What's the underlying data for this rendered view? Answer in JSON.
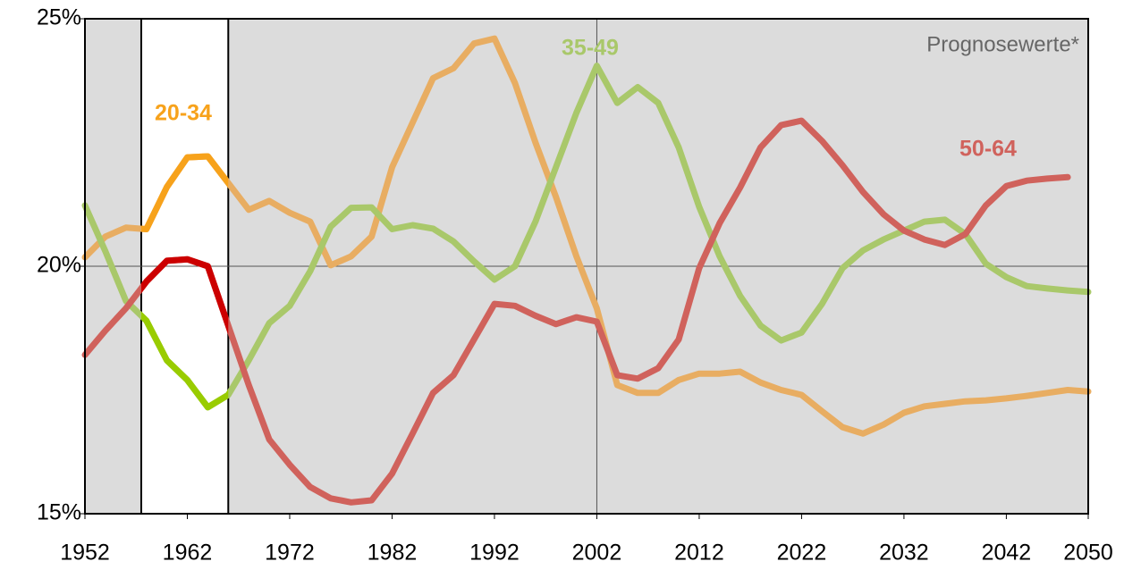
{
  "chart_data": {
    "type": "line",
    "annotation": "Prognosewerte*",
    "x": [
      1952,
      1954,
      1956,
      1958,
      1960,
      1962,
      1964,
      1966,
      1968,
      1970,
      1972,
      1974,
      1976,
      1978,
      1980,
      1982,
      1984,
      1986,
      1988,
      1990,
      1992,
      1994,
      1996,
      1998,
      2000,
      2002,
      2004,
      2006,
      2008,
      2010,
      2012,
      2014,
      2016,
      2018,
      2020,
      2022,
      2024,
      2026,
      2028,
      2030,
      2032,
      2034,
      2036,
      2038,
      2040,
      2042,
      2044,
      2046,
      2048,
      2050
    ],
    "series": [
      {
        "name": "20-34",
        "color": "#e8ad62",
        "highlight_color": "#f7a21b",
        "values": [
          20.18,
          20.6,
          20.78,
          20.75,
          21.6,
          22.2,
          22.22,
          21.68,
          21.14,
          21.32,
          21.08,
          20.9,
          20.02,
          20.2,
          20.6,
          22.0,
          22.9,
          23.8,
          24.0,
          24.5,
          24.6,
          23.7,
          22.5,
          21.4,
          20.2,
          19.15,
          17.6,
          17.44,
          17.44,
          17.7,
          17.83,
          17.83,
          17.87,
          17.65,
          17.5,
          17.4,
          17.07,
          16.75,
          16.62,
          16.8,
          17.04,
          17.17,
          17.22,
          17.27,
          17.29,
          17.33,
          17.38,
          17.44,
          17.5,
          17.47
        ]
      },
      {
        "name": "35-49",
        "color": "#a9c86a",
        "highlight_color": "#99cc00",
        "values": [
          21.23,
          20.3,
          19.3,
          18.9,
          18.1,
          17.7,
          17.15,
          17.4,
          18.1,
          18.85,
          19.2,
          19.9,
          20.8,
          21.18,
          21.19,
          20.75,
          20.83,
          20.76,
          20.5,
          20.1,
          19.73,
          20.0,
          20.9,
          22.0,
          23.1,
          24.05,
          23.3,
          23.62,
          23.3,
          22.4,
          21.2,
          20.2,
          19.4,
          18.8,
          18.5,
          18.66,
          19.24,
          19.96,
          20.32,
          20.54,
          20.72,
          20.9,
          20.94,
          20.65,
          20.05,
          19.78,
          19.6,
          19.55,
          19.51,
          19.48
        ]
      },
      {
        "name": "50-64",
        "color": "#d0625c",
        "highlight_color": "#cc0000",
        "values": [
          18.21,
          18.7,
          19.15,
          19.69,
          20.11,
          20.14,
          20.0,
          18.8,
          17.6,
          16.5,
          15.99,
          15.54,
          15.31,
          15.23,
          15.27,
          15.81,
          16.62,
          17.44,
          17.8,
          18.52,
          19.24,
          19.2,
          19.0,
          18.83,
          18.97,
          18.88,
          17.8,
          17.73,
          17.94,
          18.52,
          19.96,
          20.87,
          21.59,
          22.4,
          22.85,
          22.94,
          22.53,
          22.04,
          21.5,
          21.05,
          20.72,
          20.54,
          20.43,
          20.65,
          21.23,
          21.62,
          21.73,
          21.77,
          21.8,
          null
        ]
      }
    ],
    "xlim": [
      1952,
      2050
    ],
    "xticks": [
      1952,
      1962,
      1972,
      1982,
      1992,
      2002,
      2012,
      2022,
      2032,
      2042,
      2050
    ],
    "ylim": [
      15,
      25
    ],
    "yticks": [
      {
        "value": 15,
        "label": "15%"
      },
      {
        "value": 20,
        "label": "20%"
      },
      {
        "value": 25,
        "label": "25%"
      }
    ],
    "highlight_range": [
      1957.5,
      1966
    ],
    "forecast_start": 2002,
    "plot_background": "#dcdcdc",
    "grid": true
  }
}
